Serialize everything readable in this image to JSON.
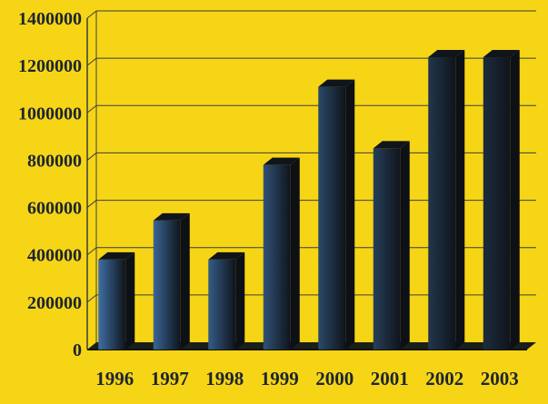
{
  "chart_data": {
    "type": "bar",
    "title": "",
    "xlabel": "",
    "ylabel": "",
    "categories": [
      "1996",
      "1997",
      "1998",
      "1999",
      "2000",
      "2001",
      "2002",
      "2003"
    ],
    "values": [
      380000,
      545000,
      380000,
      780000,
      1110000,
      850000,
      1235000,
      1235000
    ],
    "ylim": [
      0,
      1400000
    ],
    "yticks": [
      "0",
      "200000",
      "400000",
      "600000",
      "800000",
      "1000000",
      "1200000",
      "1400000"
    ],
    "grid": true,
    "legend": "none",
    "colors": {
      "background": "#f6d516",
      "gridline": "#3a3f3a",
      "bar_front_start": "#3f6fa4",
      "bar_front_end": "#1c2c3d",
      "bar_side": "#0d1014",
      "bar_top": "#10151b",
      "label_text": "#1d2530"
    }
  }
}
